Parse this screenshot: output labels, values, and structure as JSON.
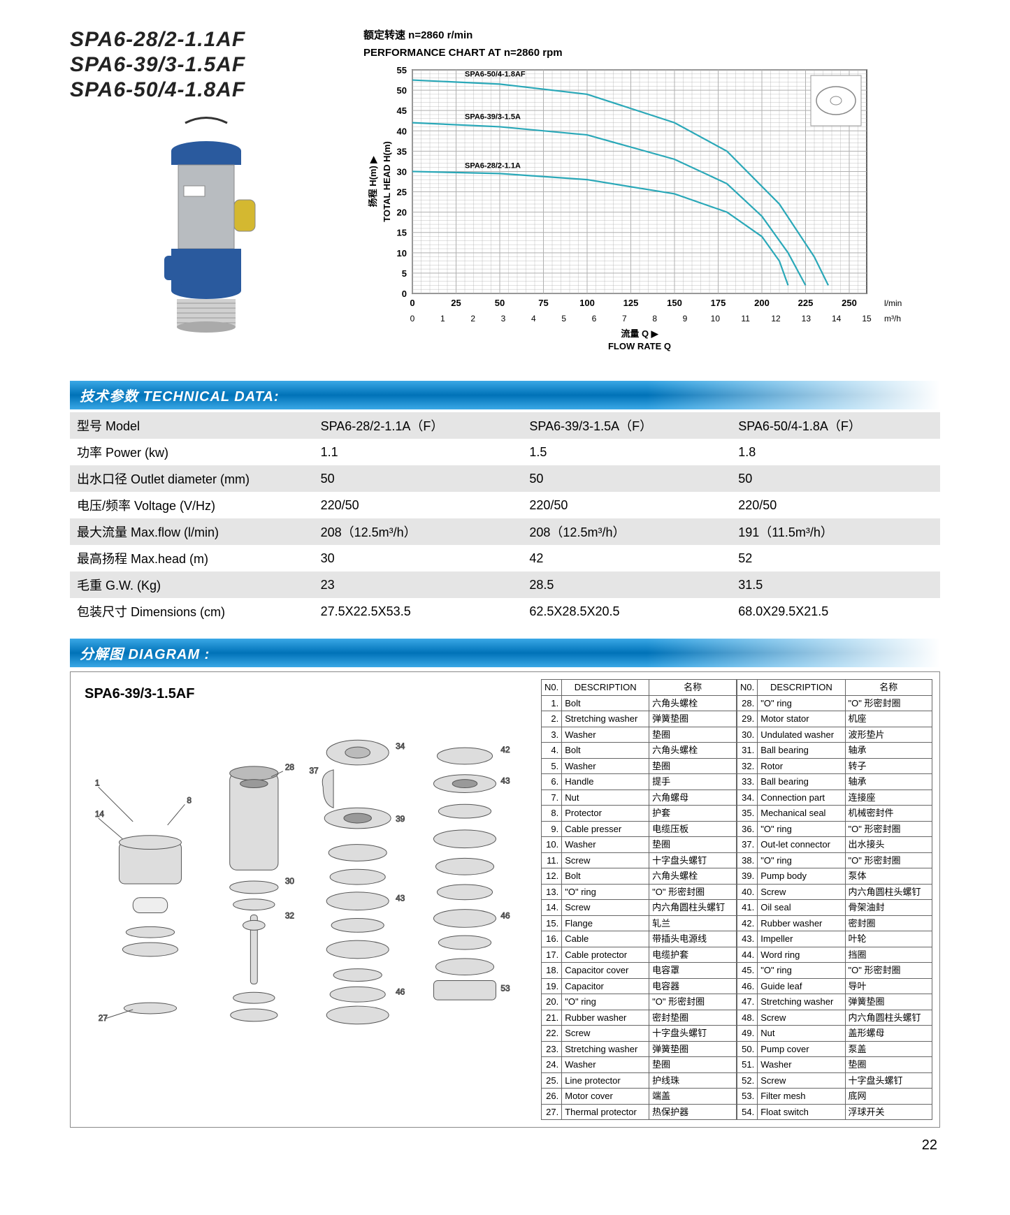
{
  "models": [
    "SPA6-28/2-1.1AF",
    "SPA6-39/3-1.5AF",
    "SPA6-50/4-1.8AF"
  ],
  "chart": {
    "title_cn": "额定转速 n=2860 r/min",
    "title_en": "PERFORMANCE CHART AT n=2860 rpm",
    "ylabel_cn": "扬程 H(m) ▶",
    "ylabel_en": "TOTAL HEAD H(m)",
    "xlabel_cn": "流量 Q ▶",
    "xlabel_en": "FLOW RATE Q",
    "x_unit1": "l/min",
    "x_unit2": "m³/h",
    "xticks_top": [
      0,
      25,
      50,
      75,
      100,
      125,
      150,
      175,
      200,
      225,
      250
    ],
    "xticks_bot": [
      0,
      1,
      2,
      3,
      4,
      5,
      6,
      7,
      8,
      9,
      10,
      11,
      12,
      13,
      14,
      15
    ],
    "yticks": [
      0,
      5,
      10,
      15,
      20,
      25,
      30,
      35,
      40,
      45,
      50,
      55
    ],
    "xlim": [
      0,
      260
    ],
    "ylim": [
      0,
      55
    ],
    "grid_color": "#b0b0b0",
    "axis_color": "#000000",
    "line_color": "#2aa8b8",
    "bg_color": "#ffffff",
    "line_width": 2.2,
    "label_fontsize": 13,
    "tick_fontsize": 13,
    "series": [
      {
        "label": "SPA6-28/2-1.1A",
        "points": [
          [
            0,
            30
          ],
          [
            50,
            29.5
          ],
          [
            100,
            28
          ],
          [
            150,
            24.5
          ],
          [
            180,
            20
          ],
          [
            200,
            14
          ],
          [
            210,
            8
          ],
          [
            215,
            2
          ]
        ]
      },
      {
        "label": "SPA6-39/3-1.5A",
        "points": [
          [
            0,
            42
          ],
          [
            50,
            41
          ],
          [
            100,
            39
          ],
          [
            150,
            33
          ],
          [
            180,
            27
          ],
          [
            200,
            19
          ],
          [
            215,
            10
          ],
          [
            225,
            2
          ]
        ]
      },
      {
        "label": "SPA6-50/4-1.8AF",
        "points": [
          [
            0,
            52.5
          ],
          [
            50,
            51.5
          ],
          [
            100,
            49
          ],
          [
            150,
            42
          ],
          [
            180,
            35
          ],
          [
            210,
            22
          ],
          [
            230,
            9
          ],
          [
            238,
            2
          ]
        ]
      }
    ]
  },
  "tech_header": "技术参数 TECHNICAL DATA:",
  "tech_rows": [
    {
      "label": "型号 Model",
      "v": [
        "SPA6-28/2-1.1A（F）",
        "SPA6-39/3-1.5A（F）",
        "SPA6-50/4-1.8A（F）"
      ]
    },
    {
      "label": "功率 Power (kw)",
      "v": [
        "1.1",
        "1.5",
        "1.8"
      ]
    },
    {
      "label": "出水口径 Outlet diameter (mm)",
      "v": [
        "50",
        "50",
        "50"
      ]
    },
    {
      "label": "电压/频率 Voltage (V/Hz)",
      "v": [
        "220/50",
        "220/50",
        "220/50"
      ]
    },
    {
      "label": "最大流量 Max.flow (l/min)",
      "v": [
        "208（12.5m³/h）",
        "208（12.5m³/h）",
        "191（11.5m³/h）"
      ]
    },
    {
      "label": "最高扬程 Max.head (m)",
      "v": [
        "30",
        "42",
        "52"
      ]
    },
    {
      "label": "毛重 G.W. (Kg)",
      "v": [
        "23",
        "28.5",
        "31.5"
      ]
    },
    {
      "label": "包装尺寸 Dimensions (cm)",
      "v": [
        "27.5X22.5X53.5",
        "62.5X28.5X20.5",
        "68.0X29.5X21.5"
      ]
    }
  ],
  "diagram_header": "分解图 DIAGRAM :",
  "diagram_model": "SPA6-39/3-1.5AF",
  "parts_header": {
    "no": "N0.",
    "desc": "DESCRIPTION",
    "name": "名称"
  },
  "parts": [
    {
      "n": 1,
      "en": "Bolt",
      "cn": "六角头螺栓"
    },
    {
      "n": 2,
      "en": "Stretching washer",
      "cn": "弹簧垫圈"
    },
    {
      "n": 3,
      "en": "Washer",
      "cn": "垫圈"
    },
    {
      "n": 4,
      "en": "Bolt",
      "cn": "六角头螺栓"
    },
    {
      "n": 5,
      "en": "Washer",
      "cn": "垫圈"
    },
    {
      "n": 6,
      "en": "Handle",
      "cn": "提手"
    },
    {
      "n": 7,
      "en": "Nut",
      "cn": "六角螺母"
    },
    {
      "n": 8,
      "en": "Protector",
      "cn": "护套"
    },
    {
      "n": 9,
      "en": "Cable presser",
      "cn": "电缆压板"
    },
    {
      "n": 10,
      "en": "Washer",
      "cn": "垫圈"
    },
    {
      "n": 11,
      "en": "Screw",
      "cn": "十字盘头螺钉"
    },
    {
      "n": 12,
      "en": "Bolt",
      "cn": "六角头螺栓"
    },
    {
      "n": 13,
      "en": "\"O\" ring",
      "cn": "\"O\" 形密封圈"
    },
    {
      "n": 14,
      "en": "Screw",
      "cn": "内六角圆柱头螺钉"
    },
    {
      "n": 15,
      "en": "Flange",
      "cn": "轧兰"
    },
    {
      "n": 16,
      "en": "Cable",
      "cn": "带插头电源线"
    },
    {
      "n": 17,
      "en": "Cable protector",
      "cn": "电缆护套"
    },
    {
      "n": 18,
      "en": "Capacitor cover",
      "cn": "电容罩"
    },
    {
      "n": 19,
      "en": "Capacitor",
      "cn": "电容器"
    },
    {
      "n": 20,
      "en": "\"O\" ring",
      "cn": "\"O\" 形密封圈"
    },
    {
      "n": 21,
      "en": "Rubber washer",
      "cn": "密封垫圈"
    },
    {
      "n": 22,
      "en": "Screw",
      "cn": "十字盘头螺钉"
    },
    {
      "n": 23,
      "en": "Stretching washer",
      "cn": "弹簧垫圈"
    },
    {
      "n": 24,
      "en": "Washer",
      "cn": "垫圈"
    },
    {
      "n": 25,
      "en": "Line protector",
      "cn": "护线珠"
    },
    {
      "n": 26,
      "en": "Motor cover",
      "cn": "端盖"
    },
    {
      "n": 27,
      "en": "Thermal protector",
      "cn": "热保护器"
    },
    {
      "n": 28,
      "en": "\"O\" ring",
      "cn": "\"O\" 形密封圈"
    },
    {
      "n": 29,
      "en": "Motor stator",
      "cn": "机座"
    },
    {
      "n": 30,
      "en": "Undulated washer",
      "cn": "波形垫片"
    },
    {
      "n": 31,
      "en": "Ball bearing",
      "cn": "轴承"
    },
    {
      "n": 32,
      "en": "Rotor",
      "cn": "转子"
    },
    {
      "n": 33,
      "en": "Ball bearing",
      "cn": "轴承"
    },
    {
      "n": 34,
      "en": "Connection part",
      "cn": "连接座"
    },
    {
      "n": 35,
      "en": "Mechanical seal",
      "cn": "机械密封件"
    },
    {
      "n": 36,
      "en": "\"O\" ring",
      "cn": "\"O\" 形密封圈"
    },
    {
      "n": 37,
      "en": "Out-let connector",
      "cn": "出水接头"
    },
    {
      "n": 38,
      "en": "\"O\" ring",
      "cn": "\"O\" 形密封圈"
    },
    {
      "n": 39,
      "en": "Pump body",
      "cn": "泵体"
    },
    {
      "n": 40,
      "en": "Screw",
      "cn": "内六角圆柱头螺钉"
    },
    {
      "n": 41,
      "en": "Oil seal",
      "cn": "骨架油封"
    },
    {
      "n": 42,
      "en": "Rubber washer",
      "cn": "密封圈"
    },
    {
      "n": 43,
      "en": "Impeller",
      "cn": "叶轮"
    },
    {
      "n": 44,
      "en": "Word ring",
      "cn": "挡圈"
    },
    {
      "n": 45,
      "en": "\"O\" ring",
      "cn": "\"O\" 形密封圈"
    },
    {
      "n": 46,
      "en": "Guide leaf",
      "cn": "导叶"
    },
    {
      "n": 47,
      "en": "Stretching washer",
      "cn": "弹簧垫圈"
    },
    {
      "n": 48,
      "en": "Screw",
      "cn": "内六角圆柱头螺钉"
    },
    {
      "n": 49,
      "en": "Nut",
      "cn": "盖形螺母"
    },
    {
      "n": 50,
      "en": "Pump cover",
      "cn": "泵盖"
    },
    {
      "n": 51,
      "en": "Washer",
      "cn": "垫圈"
    },
    {
      "n": 52,
      "en": "Screw",
      "cn": "十字盘头螺钉"
    },
    {
      "n": 53,
      "en": "Filter mesh",
      "cn": "底网"
    },
    {
      "n": 54,
      "en": "Float switch",
      "cn": "浮球开关"
    }
  ],
  "page_num": "22"
}
